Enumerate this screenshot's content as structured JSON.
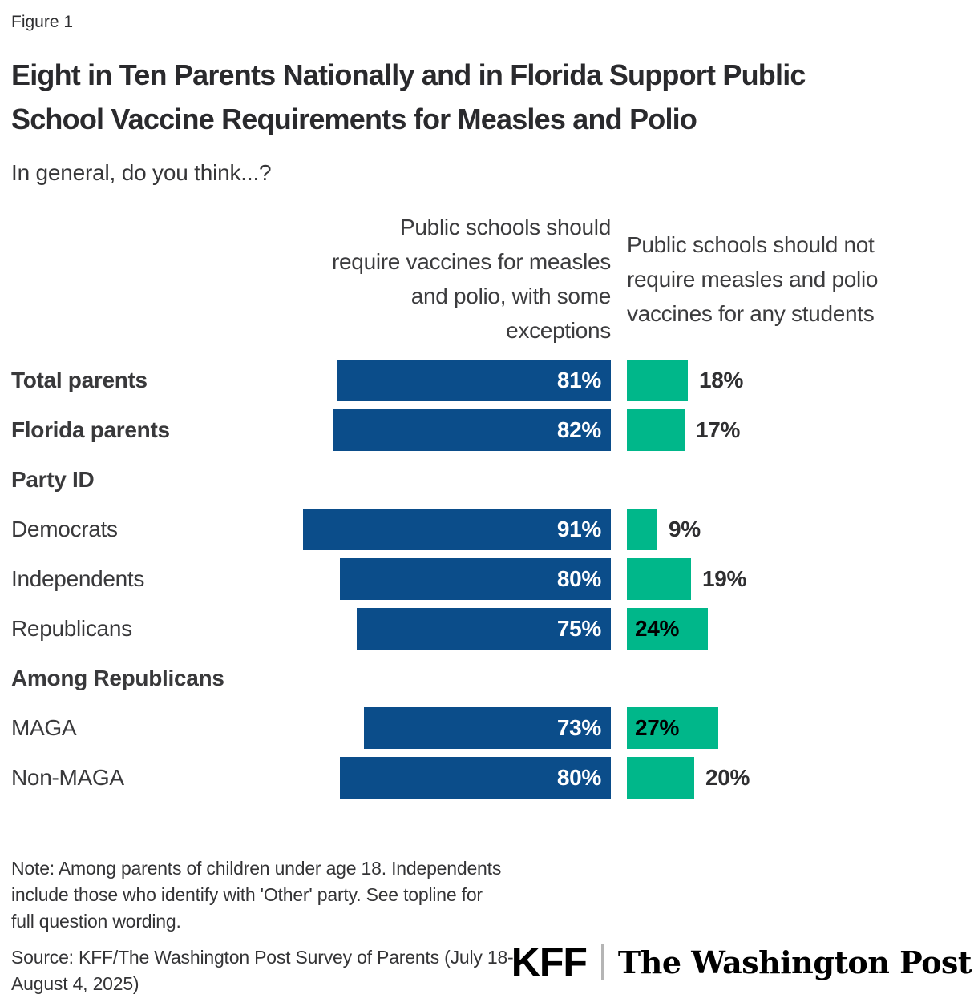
{
  "figure_label": "Figure 1",
  "title": "Eight in Ten Parents Nationally and in Florida Support Public\nSchool Vaccine Requirements for Measles and Polio",
  "subtitle": "In general, do you think...?",
  "column_headers": {
    "left": "Public schools should\nrequire vaccines for measles\nand polio, with some\nexceptions",
    "right": "Public schools should not\nrequire measles and polio\nvaccines for any students"
  },
  "chart_data": {
    "type": "bar",
    "orientation": "horizontal",
    "value_suffix": "%",
    "x_max": 100,
    "series": [
      {
        "name": "Public schools should require vaccines for measles and polio, with some exceptions",
        "color": "#0B4D8A"
      },
      {
        "name": "Public schools should not require measles and polio vaccines for any students",
        "color": "#00B78A"
      }
    ],
    "rows": [
      {
        "type": "data",
        "label": "Total parents",
        "bold": true,
        "require": 81,
        "not_require": 18
      },
      {
        "type": "data",
        "label": "Florida parents",
        "bold": true,
        "require": 82,
        "not_require": 17
      },
      {
        "type": "section",
        "label": "Party ID",
        "bold": true
      },
      {
        "type": "data",
        "label": "Democrats",
        "bold": false,
        "require": 91,
        "not_require": 9
      },
      {
        "type": "data",
        "label": "Independents",
        "bold": false,
        "require": 80,
        "not_require": 19
      },
      {
        "type": "data",
        "label": "Republicans",
        "bold": false,
        "require": 75,
        "not_require": 24
      },
      {
        "type": "section",
        "label": "Among Republicans",
        "bold": true
      },
      {
        "type": "data",
        "label": "MAGA",
        "bold": false,
        "require": 73,
        "not_require": 27
      },
      {
        "type": "data",
        "label": "Non-MAGA",
        "bold": false,
        "require": 80,
        "not_require": 20
      }
    ]
  },
  "note": "Note: Among parents of children under age 18. Independents\ninclude those who identify with 'Other' party. See topline for\nfull question wording.",
  "source": "Source: KFF/The Washington Post Survey of Parents (July 18-\nAugust 4, 2025)",
  "footer": {
    "kff_logo": "KFF",
    "wapo_logo": "The Washington Post"
  },
  "colors": {
    "require_bar": "#0B4D8A",
    "not_require_bar": "#00B78A",
    "require_value_text": "#ffffff",
    "not_require_value_text_inside": "#000000",
    "value_text_outside": "#2f2f31",
    "title_text": "#2a2a2d",
    "body_text": "#343436"
  }
}
